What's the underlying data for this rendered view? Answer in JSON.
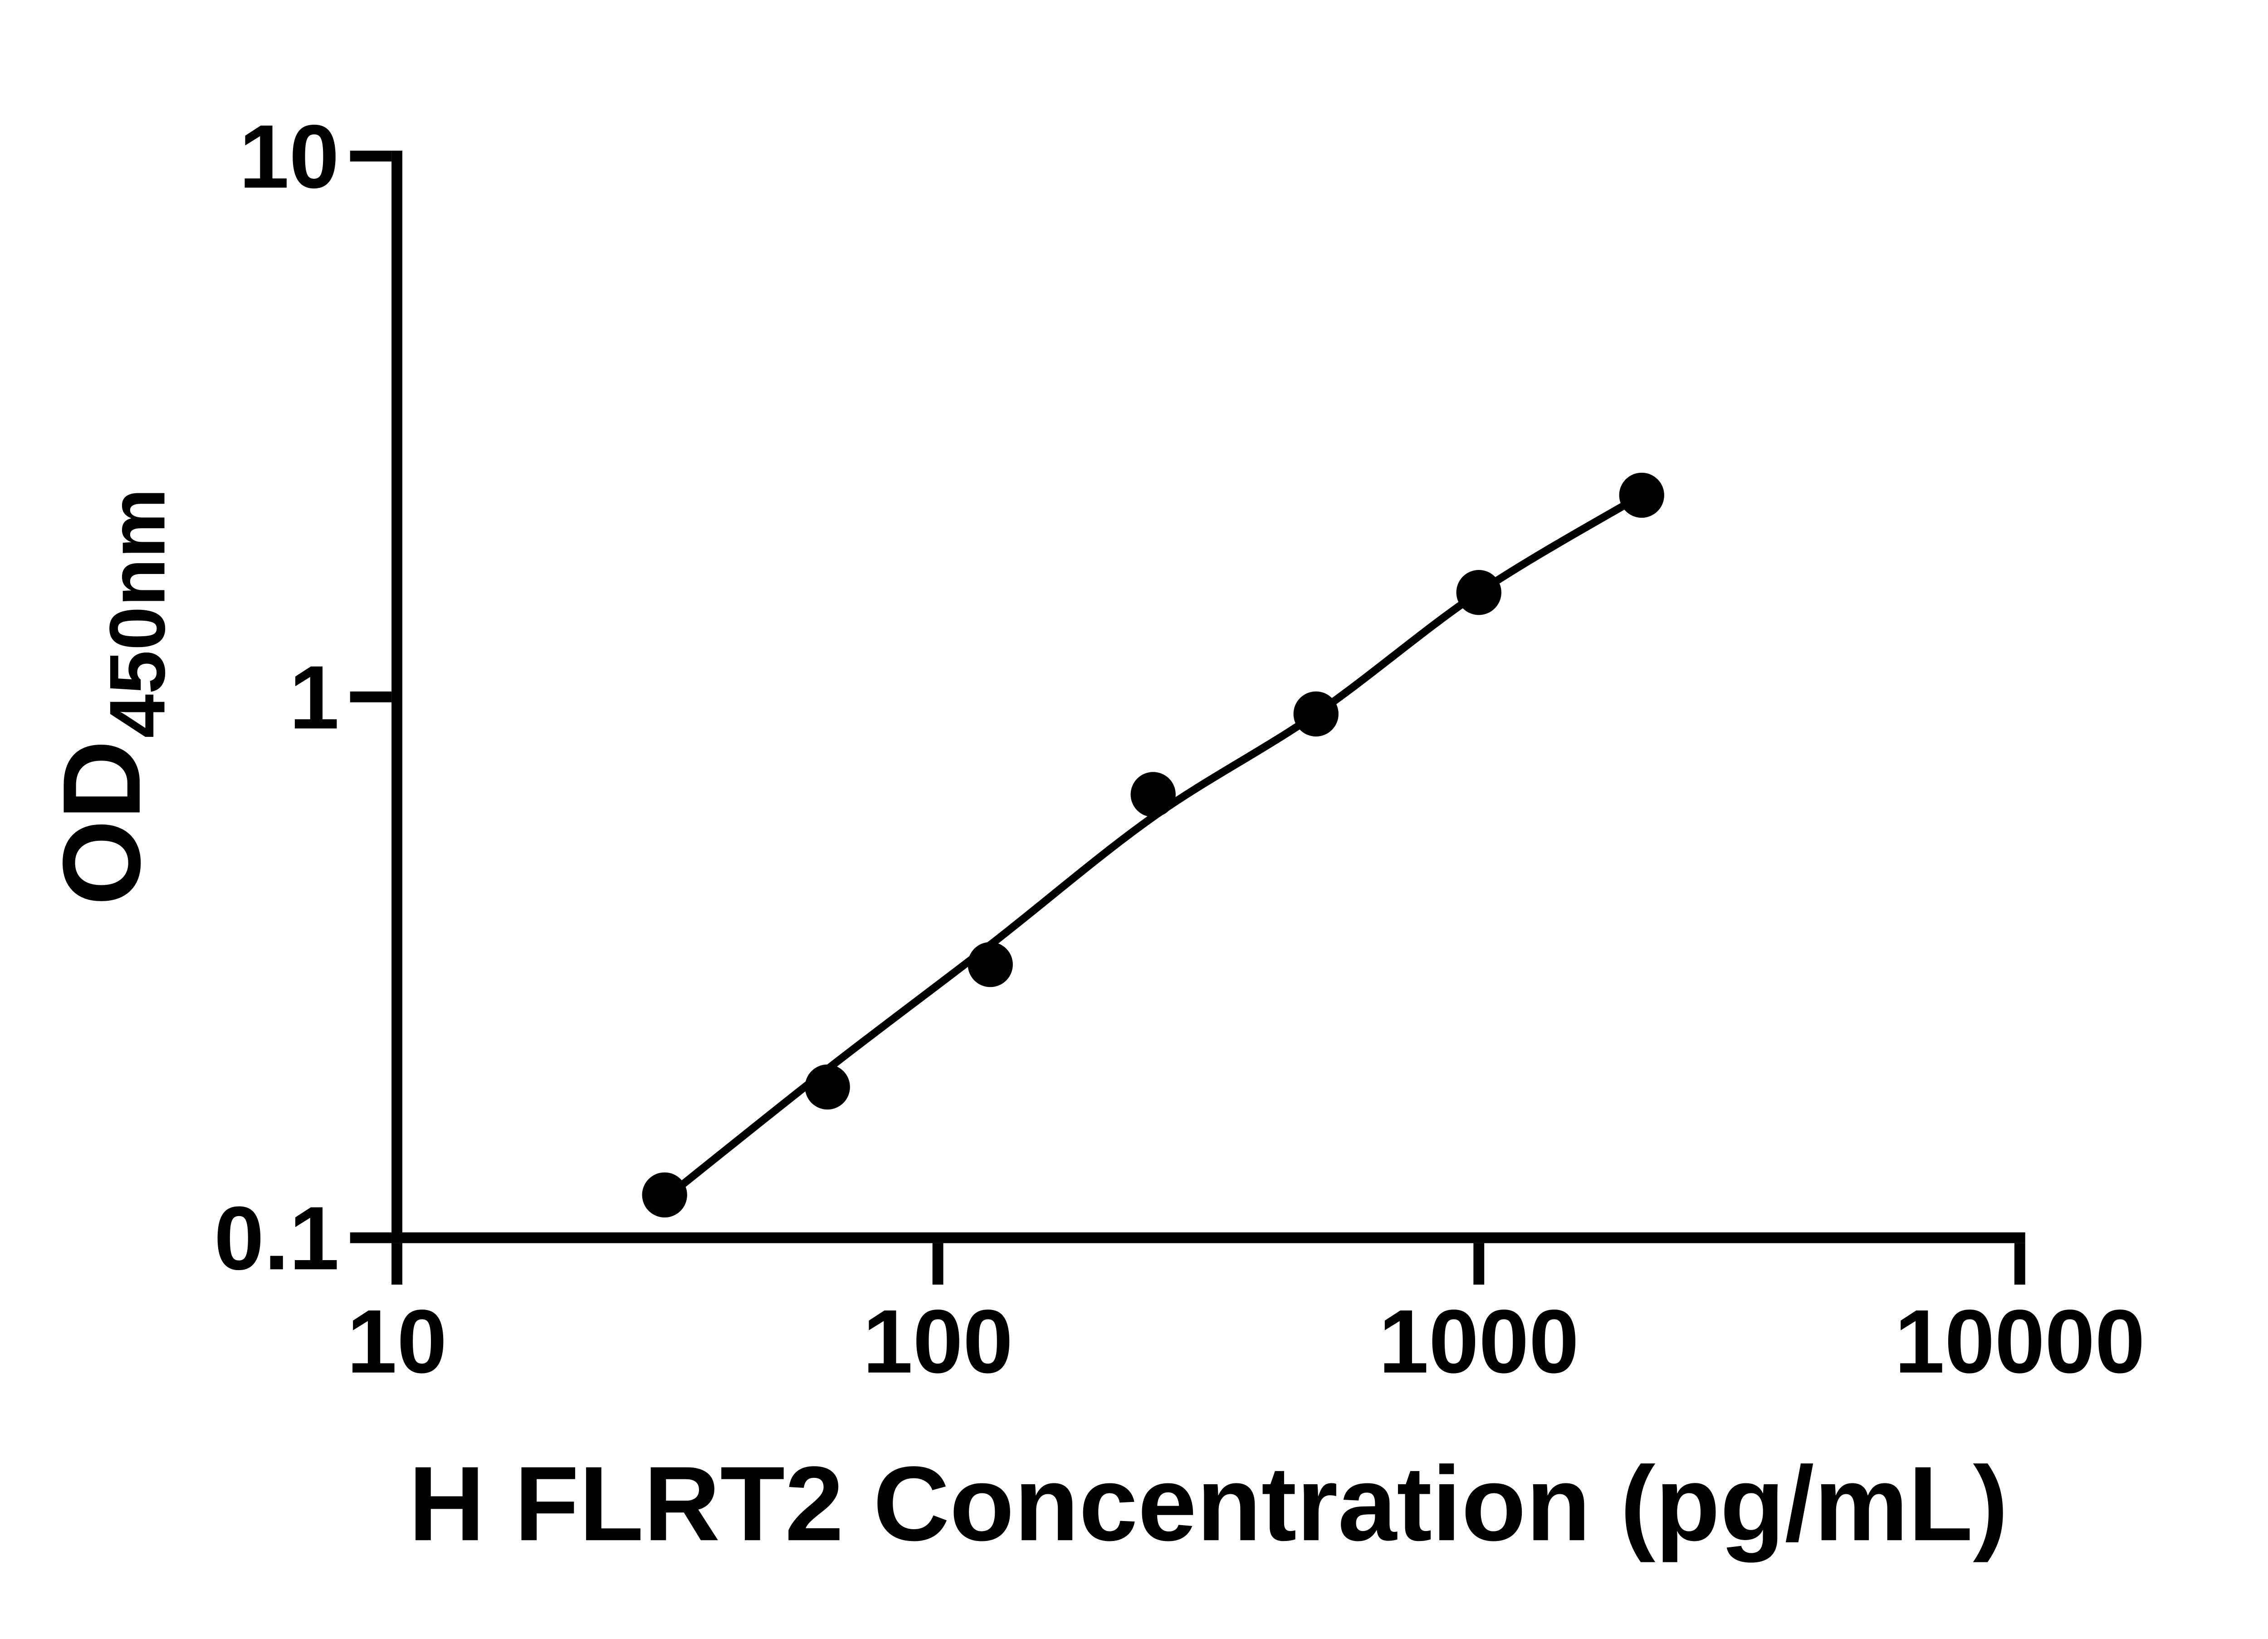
{
  "page": {
    "background_color": "#ffffff",
    "ink_color": "#000000"
  },
  "chart_data": {
    "type": "scatter",
    "title": "",
    "xlabel": "H FLRT2 Concentration (pg/mL)",
    "ylabel": "OD450nm",
    "ylabel_main": "OD",
    "ylabel_sub": "450nm",
    "x_scale": "log",
    "y_scale": "log",
    "xlim": [
      10,
      10000
    ],
    "ylim": [
      0.1,
      10
    ],
    "x_ticks": [
      10,
      100,
      1000,
      10000
    ],
    "x_tick_labels": [
      "10",
      "100",
      "1000",
      "10000"
    ],
    "y_ticks": [
      0.1,
      1,
      10
    ],
    "y_tick_labels": [
      "0.1",
      "1",
      "10"
    ],
    "grid": "off",
    "legend": "none",
    "marker_color": "#000000",
    "line_color": "#000000",
    "series": [
      {
        "name": "standard-curve-points",
        "x": [
          31.25,
          62.5,
          125,
          250,
          500,
          1000,
          2000
        ],
        "y": [
          0.12,
          0.19,
          0.32,
          0.66,
          0.93,
          1.56,
          2.36
        ]
      }
    ],
    "fit_curve": {
      "name": "4pl-fit-line",
      "x": [
        31.25,
        62.5,
        125,
        250,
        500,
        1000,
        2000
      ],
      "y": [
        0.118,
        0.205,
        0.348,
        0.6,
        0.93,
        1.56,
        2.36
      ]
    }
  }
}
